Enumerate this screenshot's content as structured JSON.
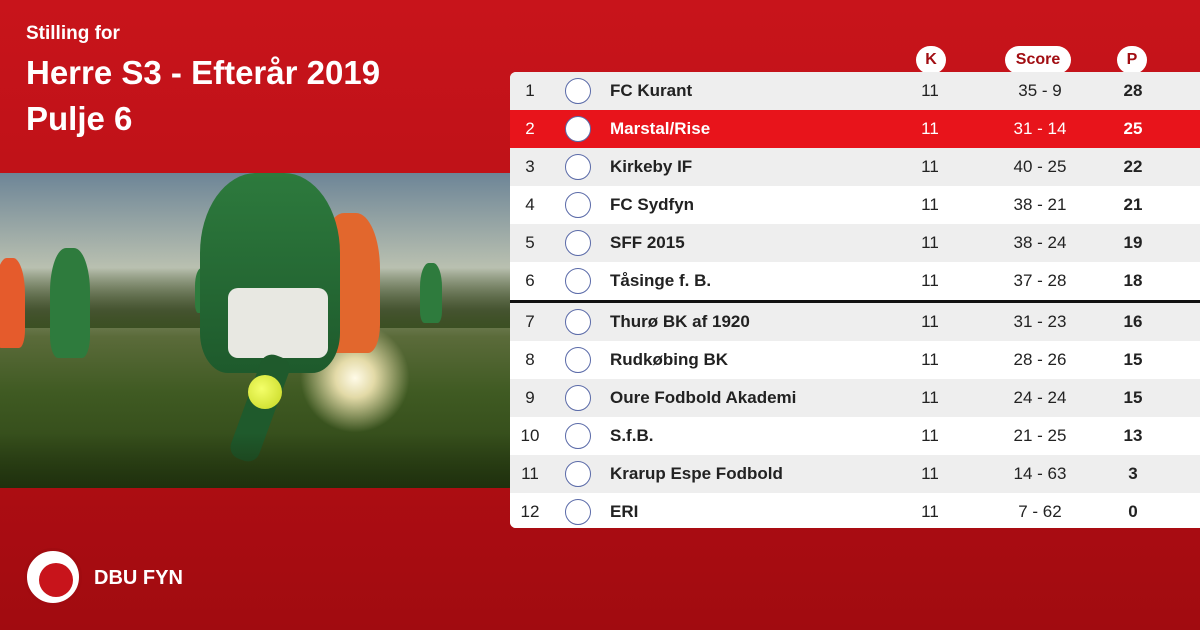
{
  "header": {
    "subtitle": "Stilling for",
    "title_line1": "Herre S3 - Efterår 2019",
    "title_line2": "Pulje 6"
  },
  "columns": {
    "k": "K",
    "score": "Score",
    "p": "P"
  },
  "table": [
    {
      "pos": "1",
      "team": "FC Kurant",
      "k": "11",
      "score": "35 - 9",
      "p": "28",
      "logo": "team-logo"
    },
    {
      "pos": "2",
      "team": "Marstal/Rise",
      "k": "11",
      "score": "31 - 14",
      "p": "25",
      "logo": "team-logo",
      "highlight": true
    },
    {
      "pos": "3",
      "team": "Kirkeby IF",
      "k": "11",
      "score": "40 - 25",
      "p": "22",
      "logo": "team-logo"
    },
    {
      "pos": "4",
      "team": "FC Sydfyn",
      "k": "11",
      "score": "38 - 21",
      "p": "21",
      "logo": "team-logo"
    },
    {
      "pos": "5",
      "team": "SFF 2015",
      "k": "11",
      "score": "38 - 24",
      "p": "19",
      "logo": "team-logo"
    },
    {
      "pos": "6",
      "team": "Tåsinge  f. B.",
      "k": "11",
      "score": "37 - 28",
      "p": "18",
      "logo": "team-logo",
      "cutline": true
    },
    {
      "pos": "7",
      "team": "Thurø BK af 1920",
      "k": "11",
      "score": "31 - 23",
      "p": "16",
      "logo": "team-logo"
    },
    {
      "pos": "8",
      "team": "Rudkøbing BK",
      "k": "11",
      "score": "28 - 26",
      "p": "15",
      "logo": "team-logo"
    },
    {
      "pos": "9",
      "team": "Oure Fodbold Akademi",
      "k": "11",
      "score": "24 - 24",
      "p": "15",
      "logo": "team-logo"
    },
    {
      "pos": "10",
      "team": "S.f.B.",
      "k": "11",
      "score": "21 - 25",
      "p": "13",
      "logo": "team-logo"
    },
    {
      "pos": "11",
      "team": "Krarup Espe Fodbold",
      "k": "11",
      "score": "14 - 63",
      "p": "3",
      "logo": "team-logo"
    },
    {
      "pos": "12",
      "team": "ERI",
      "k": "11",
      "score": "7 - 62",
      "p": "0",
      "logo": "team-logo"
    }
  ],
  "footer": {
    "label": "DBU FYN"
  },
  "colors": {
    "brand_red": "#c8141b",
    "highlight_row": "#e8141b"
  }
}
